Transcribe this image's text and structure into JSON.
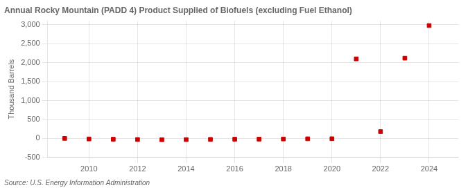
{
  "chart_data": {
    "type": "scatter",
    "title": "Annual Rocky Mountain (PADD 4) Product Supplied of Biofuels (excluding Fuel Ethanol)",
    "ylabel": "Thousand Barrels",
    "source": "Source: U.S. Energy Information Administration",
    "x": [
      2009,
      2010,
      2011,
      2012,
      2013,
      2014,
      2015,
      2016,
      2017,
      2018,
      2019,
      2020,
      2021,
      2022,
      2023,
      2024
    ],
    "values": [
      0,
      -14,
      -20,
      -28,
      -33,
      -30,
      -25,
      -20,
      -18,
      -15,
      -10,
      -8,
      2100,
      180,
      2120,
      2980
    ],
    "color": "#cc0000",
    "marker": "square",
    "xlim": [
      2008.3,
      2025.2
    ],
    "xticks": [
      2010,
      2012,
      2014,
      2016,
      2018,
      2020,
      2022,
      2024
    ],
    "ylim": [
      -500,
      3100
    ],
    "yticks": [
      -500,
      0,
      500,
      {
        "value": 1000,
        "label": "1,000"
      },
      {
        "value": 1500,
        "label": "1,500"
      },
      {
        "value": 2000,
        "label": "2,000"
      },
      {
        "value": 2500,
        "label": "2,500"
      },
      {
        "value": 3000,
        "label": "3,000"
      }
    ],
    "grid": true
  }
}
